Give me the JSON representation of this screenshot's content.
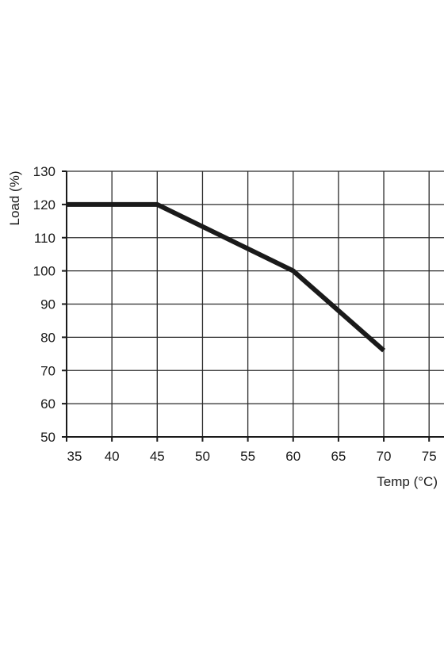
{
  "chart_data": {
    "type": "line",
    "title": "",
    "xlabel": "Temp (°C)",
    "ylabel": "Load (%)",
    "xlim": [
      35,
      75
    ],
    "ylim": [
      50,
      130
    ],
    "x_ticks": [
      35,
      40,
      45,
      50,
      55,
      60,
      65,
      70,
      75
    ],
    "y_ticks": [
      50,
      60,
      70,
      80,
      90,
      100,
      110,
      120,
      130
    ],
    "grid": true,
    "legend": "none",
    "series": [
      {
        "color": "#1a1a1a",
        "x": [
          35,
          45,
          60,
          70
        ],
        "y": [
          120,
          120,
          100,
          76
        ]
      }
    ]
  }
}
